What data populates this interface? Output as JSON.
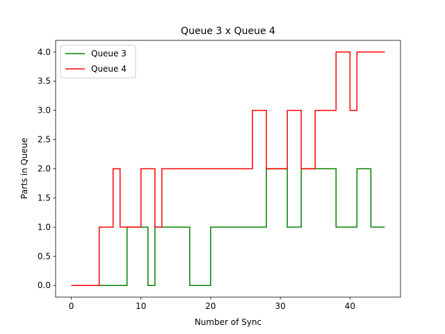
{
  "chart_data": {
    "type": "line",
    "step": "post",
    "title": "Queue 3 x Queue 4",
    "xlabel": "Number of Sync",
    "ylabel": "Parts in Queue",
    "xlim": [
      -2.25,
      47.25
    ],
    "ylim": [
      -0.2,
      4.2
    ],
    "xticks": [
      "0",
      "10",
      "20",
      "30",
      "40"
    ],
    "yticks": [
      "0.0",
      "0.5",
      "1.0",
      "1.5",
      "2.0",
      "2.5",
      "3.0",
      "3.5",
      "4.0"
    ],
    "grid": false,
    "legend_position": "top-left",
    "series": [
      {
        "name": "Queue 3",
        "color": "#008000",
        "x": [
          0,
          4,
          8,
          11,
          12,
          17,
          20,
          28,
          31,
          33,
          38,
          41,
          43,
          45
        ],
        "y": [
          0,
          0,
          1,
          0,
          1,
          0,
          1,
          2,
          1,
          2,
          1,
          2,
          1,
          1
        ]
      },
      {
        "name": "Queue 4",
        "color": "#ff0000",
        "x": [
          0,
          4,
          6,
          7,
          10,
          12,
          13,
          26,
          28,
          31,
          33,
          35,
          38,
          40,
          41,
          45
        ],
        "y": [
          0,
          1,
          2,
          1,
          2,
          1,
          2,
          3,
          2,
          3,
          2,
          3,
          4,
          3,
          4,
          4
        ]
      }
    ]
  }
}
